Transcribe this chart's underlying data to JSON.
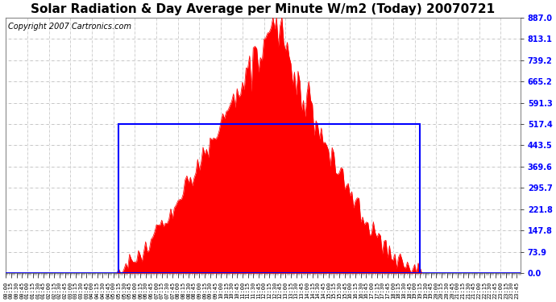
{
  "title": "Solar Radiation & Day Average per Minute W/m2 (Today) 20070721",
  "copyright": "Copyright 2007 Cartronics.com",
  "yticks": [
    0.0,
    73.9,
    147.8,
    221.8,
    295.7,
    369.6,
    443.5,
    517.4,
    591.3,
    665.2,
    739.2,
    813.1,
    887.0
  ],
  "ymax": 887.0,
  "ymin": 0.0,
  "day_avg": 517.4,
  "sunrise_idx": 63,
  "sunset_idx": 231,
  "fill_color": "#FF0000",
  "avg_box_color": "#0000FF",
  "background_color": "#FFFFFF",
  "plot_bg_color": "#FFFFFF",
  "grid_color": "#AAAAAA",
  "title_fontsize": 11,
  "copyright_fontsize": 7,
  "tick_fontsize": 7,
  "n_points": 288
}
